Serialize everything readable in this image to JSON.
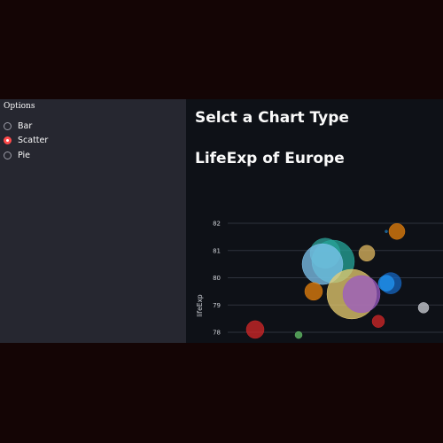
{
  "sidebar": {
    "title": "Options",
    "options": [
      {
        "label": "Bar",
        "selected": false
      },
      {
        "label": "Scatter",
        "selected": true
      },
      {
        "label": "Pie",
        "selected": false
      }
    ]
  },
  "main": {
    "heading": "Selct a Chart Type",
    "subheading": "LifeExp of Europe"
  },
  "colors": {
    "sidebar_bg": "#262730",
    "main_bg": "#0e1117",
    "accent": "#ff4b4b"
  },
  "chart_data": {
    "type": "scatter",
    "title": "",
    "xlabel": "",
    "ylabel": "lifeExp",
    "y_ticks": [
      78,
      79,
      80,
      81,
      82
    ],
    "ylim": [
      77.6,
      82.3
    ],
    "grid": true,
    "points": [
      {
        "y": 81.7,
        "r": 9,
        "color": "#e8820c"
      },
      {
        "y": 81.7,
        "r": 1.5,
        "color": "#1f77b4"
      },
      {
        "y": 80.9,
        "r": 17,
        "color": "#2ca39a"
      },
      {
        "y": 80.6,
        "r": 24,
        "color": "#26a69a"
      },
      {
        "y": 80.5,
        "r": 23,
        "color": "#7fc4ef"
      },
      {
        "y": 80.9,
        "r": 9,
        "color": "#e0b860"
      },
      {
        "y": 79.5,
        "r": 10,
        "color": "#e8820c"
      },
      {
        "y": 79.4,
        "r": 28,
        "color": "#e9cd70"
      },
      {
        "y": 79.4,
        "r": 21,
        "color": "#9b59c6"
      },
      {
        "y": 79.8,
        "r": 12,
        "color": "#1565c0"
      },
      {
        "y": 79.8,
        "r": 9,
        "color": "#2196f3"
      },
      {
        "y": 78.9,
        "r": 6,
        "color": "#cfd2d8"
      },
      {
        "y": 78.4,
        "r": 7,
        "color": "#d62728"
      },
      {
        "y": 78.1,
        "r": 10,
        "color": "#d62728"
      },
      {
        "y": 77.9,
        "r": 4,
        "color": "#66c46a"
      }
    ]
  }
}
